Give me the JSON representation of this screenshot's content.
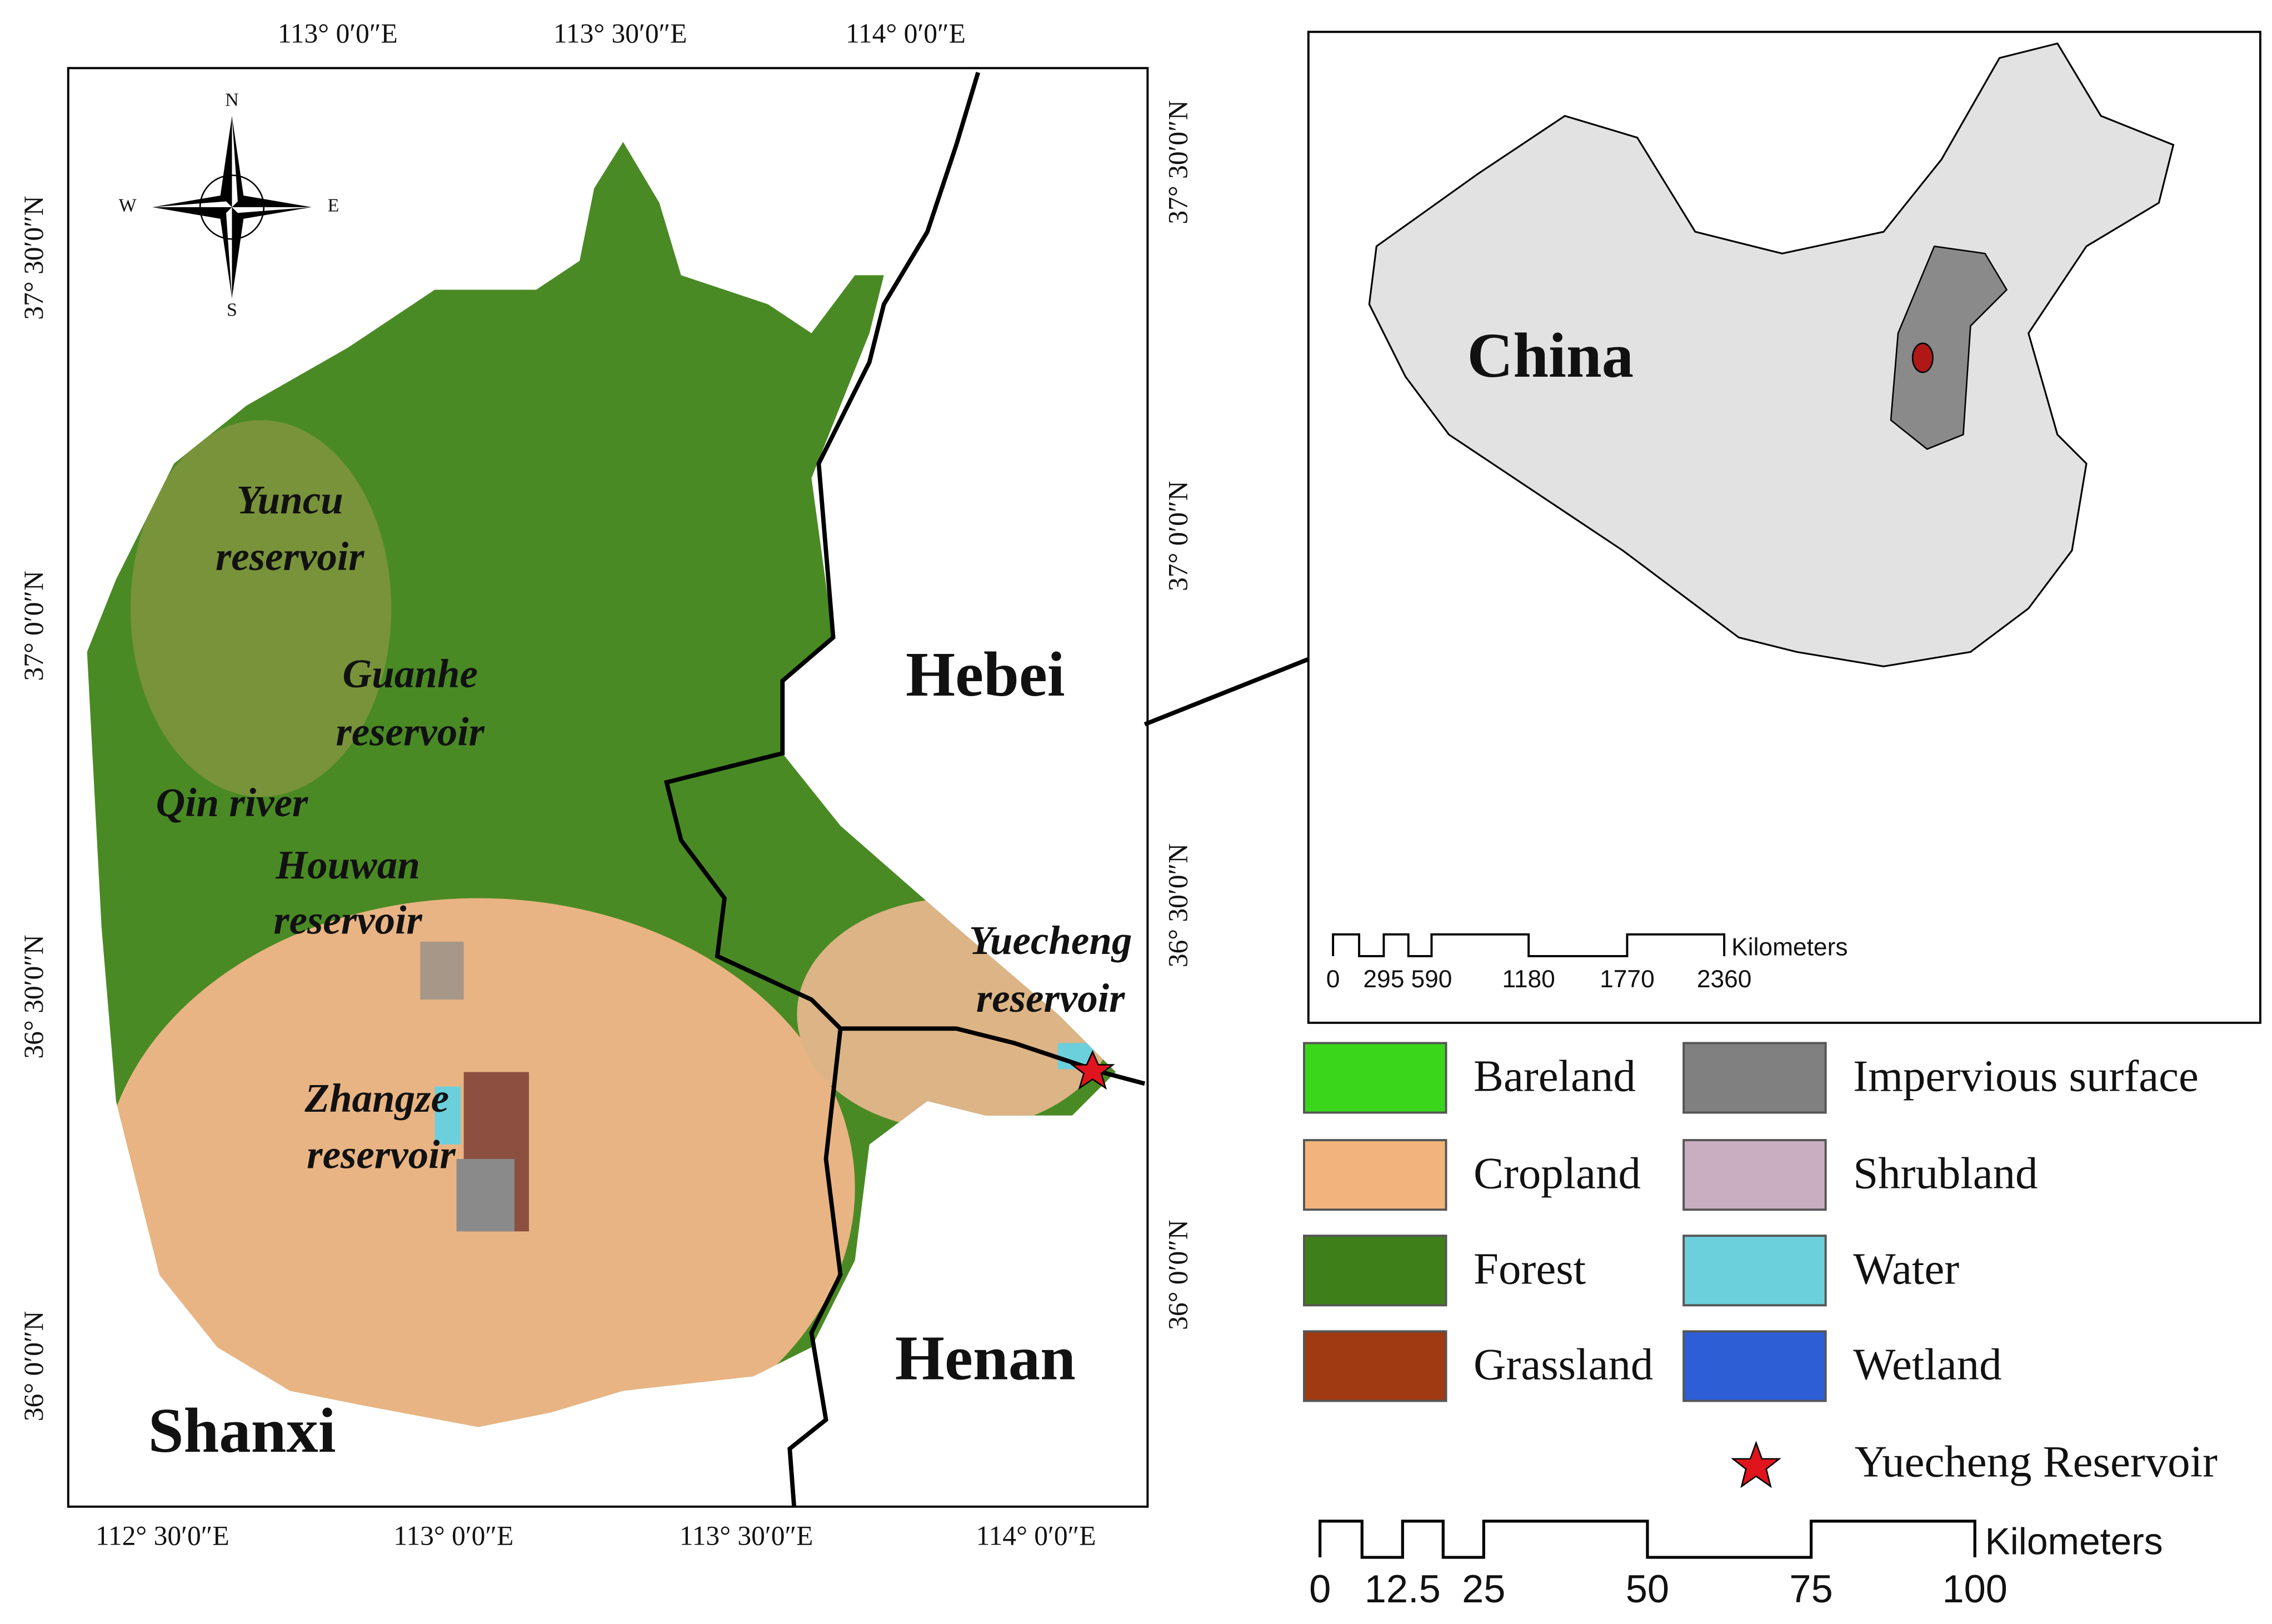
{
  "map": {
    "top_ticks": [
      "113°  0′0″E",
      "113°  30′0″E",
      "114°  0′0″E"
    ],
    "bottom_ticks": [
      "112°  30′0″E",
      "113°  0′0″E",
      "113°  30′0″E",
      "114°  0′0″E"
    ],
    "left_ticks": [
      "37°  30′0″N",
      "37°  0′0″N",
      "36°  30′0″N",
      "36°  0′0″N"
    ],
    "right_ticks": [
      "37°  30′0″N",
      "37°  0′0″N",
      "36°  30′0″N",
      "36°  0′0″N"
    ],
    "compass": [
      "N",
      "S",
      "E",
      "W"
    ],
    "places": [
      [
        "Yuncu",
        "reservoir"
      ],
      [
        "Guanhe",
        "reservoir"
      ],
      [
        "Qin river"
      ],
      [
        "Houwan",
        "reservoir"
      ],
      [
        "Zhangze",
        "reservoir"
      ],
      [
        "Yuecheng",
        "reservoir"
      ]
    ],
    "provinces": [
      "Hebei",
      "Henan",
      "Shanxi"
    ],
    "scale_labels": [
      0,
      12.5,
      25,
      50,
      75,
      100
    ],
    "scale_unit": "Kilometers"
  },
  "inset": {
    "title": "China",
    "scale_labels": [
      0,
      295,
      590,
      1180,
      1770,
      2360
    ],
    "scale_unit": "Kilometers"
  },
  "legend": {
    "items": [
      {
        "label": "Bareland",
        "color": "#3ad61c"
      },
      {
        "label": "Cropland",
        "color": "#f2b47c"
      },
      {
        "label": "Forest",
        "color": "#3f7f1a"
      },
      {
        "label": "Grassland",
        "color": "#a03a12"
      },
      {
        "label": "Impervious surface",
        "color": "#808080"
      },
      {
        "label": "Shrubland",
        "color": "#c8aec0"
      },
      {
        "label": "Water",
        "color": "#6bd0dc"
      },
      {
        "label": "Wetland",
        "color": "#2e5ed6"
      }
    ],
    "star_label": "Yuecheng Reservoir"
  }
}
